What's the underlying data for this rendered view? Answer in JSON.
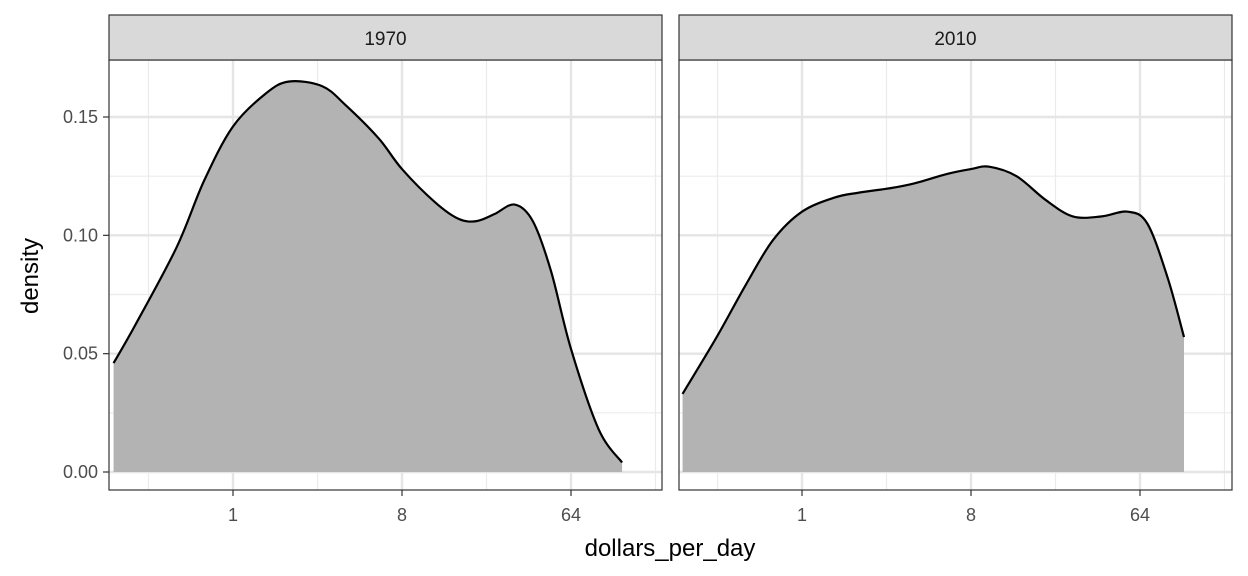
{
  "chart_data": {
    "type": "area",
    "chart_kind": "faceted density plot",
    "xlabel": "dollars_per_day",
    "ylabel": "density",
    "x_scale": "log2",
    "x_ticks": [
      1,
      8,
      64
    ],
    "x_tick_labels": [
      "1",
      "8",
      "64"
    ],
    "ylim": [
      0,
      0.17
    ],
    "y_ticks": [
      0,
      0.05,
      0.1,
      0.15
    ],
    "y_tick_labels": [
      "0.00",
      "0.05",
      "0.10",
      "0.15"
    ],
    "grid": true,
    "fill_color": "#b3b3b3",
    "line_color": "#000000",
    "strip_fill": "#d9d9d9",
    "panels": [
      {
        "label": "1970",
        "x": [
          0.23,
          0.3,
          0.5,
          0.7,
          1.0,
          1.5,
          2.0,
          3.0,
          4.0,
          6.0,
          8.0,
          12.0,
          16.0,
          20.0,
          25.0,
          32.0,
          40.0,
          50.0,
          64.0,
          90.0,
          120.0
        ],
        "y": [
          0.046,
          0.062,
          0.095,
          0.123,
          0.146,
          0.16,
          0.165,
          0.163,
          0.155,
          0.141,
          0.128,
          0.114,
          0.107,
          0.106,
          0.109,
          0.113,
          0.106,
          0.085,
          0.052,
          0.018,
          0.004
        ]
      },
      {
        "label": "2010",
        "x": [
          0.23,
          0.35,
          0.5,
          0.7,
          1.0,
          1.5,
          2.0,
          3.0,
          4.0,
          6.0,
          8.0,
          10.0,
          14.0,
          20.0,
          28.0,
          40.0,
          55.0,
          70.0,
          90.0,
          110.0
        ],
        "y": [
          0.033,
          0.057,
          0.079,
          0.098,
          0.11,
          0.116,
          0.118,
          0.12,
          0.122,
          0.126,
          0.128,
          0.129,
          0.125,
          0.115,
          0.108,
          0.108,
          0.11,
          0.105,
          0.082,
          0.057
        ]
      }
    ]
  }
}
